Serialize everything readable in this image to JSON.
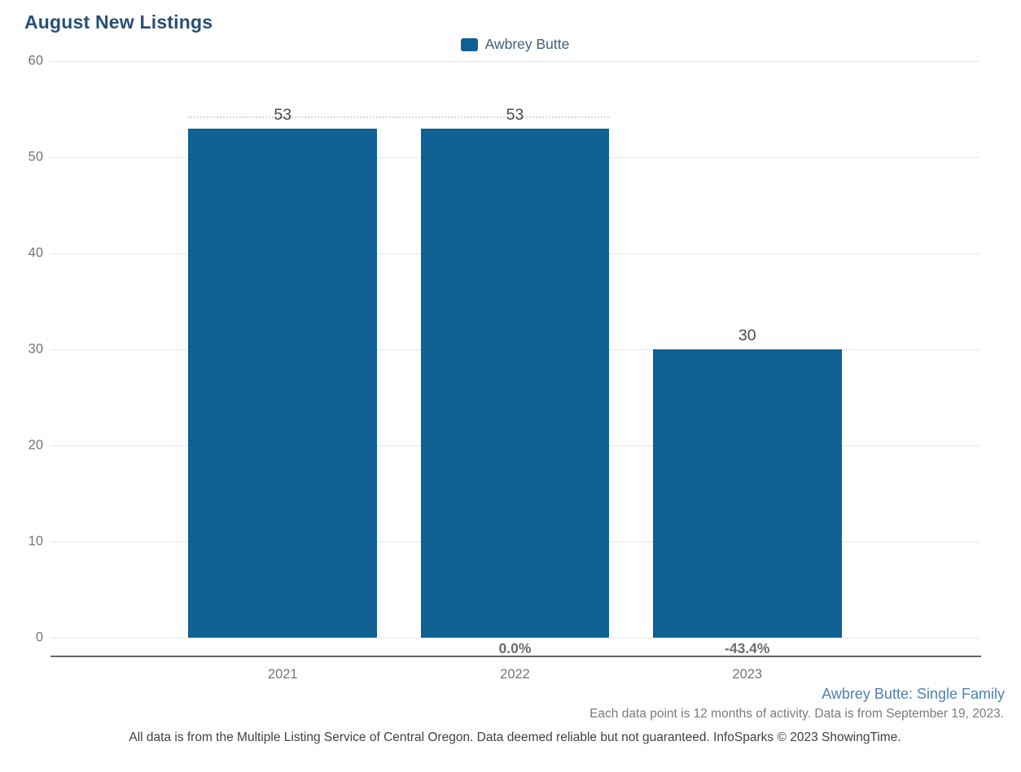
{
  "title": "August New Listings",
  "legend": {
    "items": [
      {
        "label": "Awbrey Butte",
        "color": "#0f6193"
      }
    ]
  },
  "chart_data": {
    "type": "bar",
    "title": "August New Listings",
    "series_name": "Awbrey Butte",
    "categories": [
      "2021",
      "2022",
      "2023"
    ],
    "values": [
      53,
      53,
      30
    ],
    "value_labels": [
      "53",
      "53",
      "30"
    ],
    "pct_change_labels": [
      "",
      "0.0%",
      "-43.4%"
    ],
    "bar_color": "#0f6193",
    "xlabel": "",
    "ylabel": "",
    "ylim": [
      0,
      60
    ],
    "yticks": [
      0,
      10,
      20,
      30,
      40,
      50,
      60
    ],
    "grid": true,
    "legend_position": "top-center",
    "bar_width_fraction": 0.203,
    "annotations": [
      {
        "type": "dotted-line",
        "value": 54.2,
        "from_category": "2021",
        "to_category": "2022"
      }
    ]
  },
  "footer": {
    "series_link": "Awbrey Butte: Single Family",
    "data_note": "Each data point is 12 months of activity. Data is from September 19, 2023.",
    "disclaimer": "All data is from the Multiple Listing Service of Central Oregon. Data deemed reliable but not guaranteed. InfoSparks © 2023 ShowingTime."
  },
  "colors": {
    "bar": "#0f6193",
    "title": "#274f78",
    "legend_text": "#40607e",
    "axis_line": "#636363",
    "gridline": "#e7e7e7",
    "tick_text": "#757575",
    "value_text": "#4a4a4a",
    "pct_text": "#6d6d6d",
    "footer_link": "#4e81b4"
  }
}
